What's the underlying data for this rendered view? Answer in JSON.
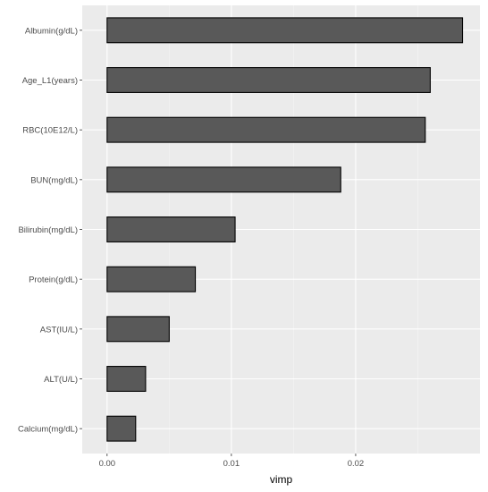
{
  "chart_data": {
    "type": "bar",
    "orientation": "horizontal",
    "categories": [
      "Albumin(g/dL)",
      "Age_L1(years)",
      "RBC(10E12/L)",
      "BUN(mg/dL)",
      "Bilirubin(mg/dL)",
      "Protein(g/dL)",
      "AST(IU/L)",
      "ALT(U/L)",
      "Calcium(mg/dL)"
    ],
    "values": [
      0.0286,
      0.026,
      0.0256,
      0.0188,
      0.0103,
      0.0071,
      0.005,
      0.0031,
      0.0023
    ],
    "xlabel": "vimp",
    "ylabel": "",
    "title": "",
    "xlim": [
      -0.002,
      0.03
    ],
    "xticks": [
      0.0,
      0.01,
      0.02
    ],
    "xtick_labels": [
      "0.00",
      "0.01",
      "0.02"
    ],
    "grid": true,
    "colors": {
      "panel": "#ebebeb",
      "grid_major": "#ffffff",
      "grid_minor": "#f5f5f5",
      "bar_fill": "#595959",
      "bar_stroke": "#000000"
    }
  }
}
